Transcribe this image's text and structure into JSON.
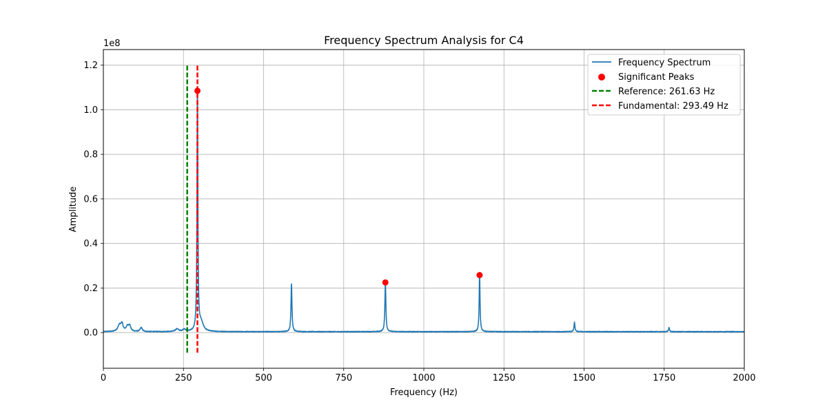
{
  "chart_data": {
    "type": "line",
    "title": "Frequency Spectrum Analysis for C4",
    "xlabel": "Frequency (Hz)",
    "ylabel": "Amplitude",
    "y_scale_label": "1e8",
    "xlim": [
      0,
      2000
    ],
    "ylim": [
      -0.16,
      1.27
    ],
    "x_ticks": [
      0,
      250,
      500,
      750,
      1000,
      1250,
      1500,
      1750,
      2000
    ],
    "x_tick_labels": [
      "0",
      "250",
      "500",
      "750",
      "1000",
      "1250",
      "1500",
      "1750",
      "2000"
    ],
    "y_ticks": [
      0.0,
      0.2,
      0.4,
      0.6,
      0.8,
      1.0,
      1.2
    ],
    "y_tick_labels": [
      "0.0",
      "0.2",
      "0.4",
      "0.6",
      "0.8",
      "1.0",
      "1.2"
    ],
    "grid": true,
    "legend_position": "top-right",
    "series": [
      {
        "name": "Frequency Spectrum",
        "color": "#1f77b4",
        "kind": "line",
        "baseline": 0.004,
        "peaks": [
          {
            "x": 50,
            "y": 0.028,
            "width": 6
          },
          {
            "x": 58,
            "y": 0.032,
            "width": 4
          },
          {
            "x": 75,
            "y": 0.022,
            "width": 5
          },
          {
            "x": 82,
            "y": 0.024,
            "width": 4
          },
          {
            "x": 118,
            "y": 0.018,
            "width": 4
          },
          {
            "x": 230,
            "y": 0.012,
            "width": 6
          },
          {
            "x": 252,
            "y": 0.01,
            "width": 5
          },
          {
            "x": 293.49,
            "y": 1.085,
            "width": 1.6
          },
          {
            "x": 305,
            "y": 0.04,
            "width": 8
          },
          {
            "x": 587,
            "y": 0.215,
            "width": 1.8
          },
          {
            "x": 880,
            "y": 0.225,
            "width": 1.8
          },
          {
            "x": 1174,
            "y": 0.258,
            "width": 1.6
          },
          {
            "x": 1470,
            "y": 0.042,
            "width": 1.8
          },
          {
            "x": 1765,
            "y": 0.018,
            "width": 1.8
          }
        ]
      },
      {
        "name": "Significant Peaks",
        "color": "#ff0000",
        "kind": "scatter",
        "points": [
          [
            293.49,
            1.085
          ],
          [
            880,
            0.225
          ],
          [
            1174,
            0.258
          ]
        ]
      },
      {
        "name": "Reference: 261.63 Hz",
        "color": "#008000",
        "kind": "vline",
        "x": 261.63,
        "y_range": [
          -0.09,
          1.2
        ]
      },
      {
        "name": "Fundamental: 293.49 Hz",
        "color": "#ff0000",
        "kind": "vline",
        "x": 293.49,
        "y_range": [
          -0.09,
          1.2
        ]
      }
    ]
  }
}
